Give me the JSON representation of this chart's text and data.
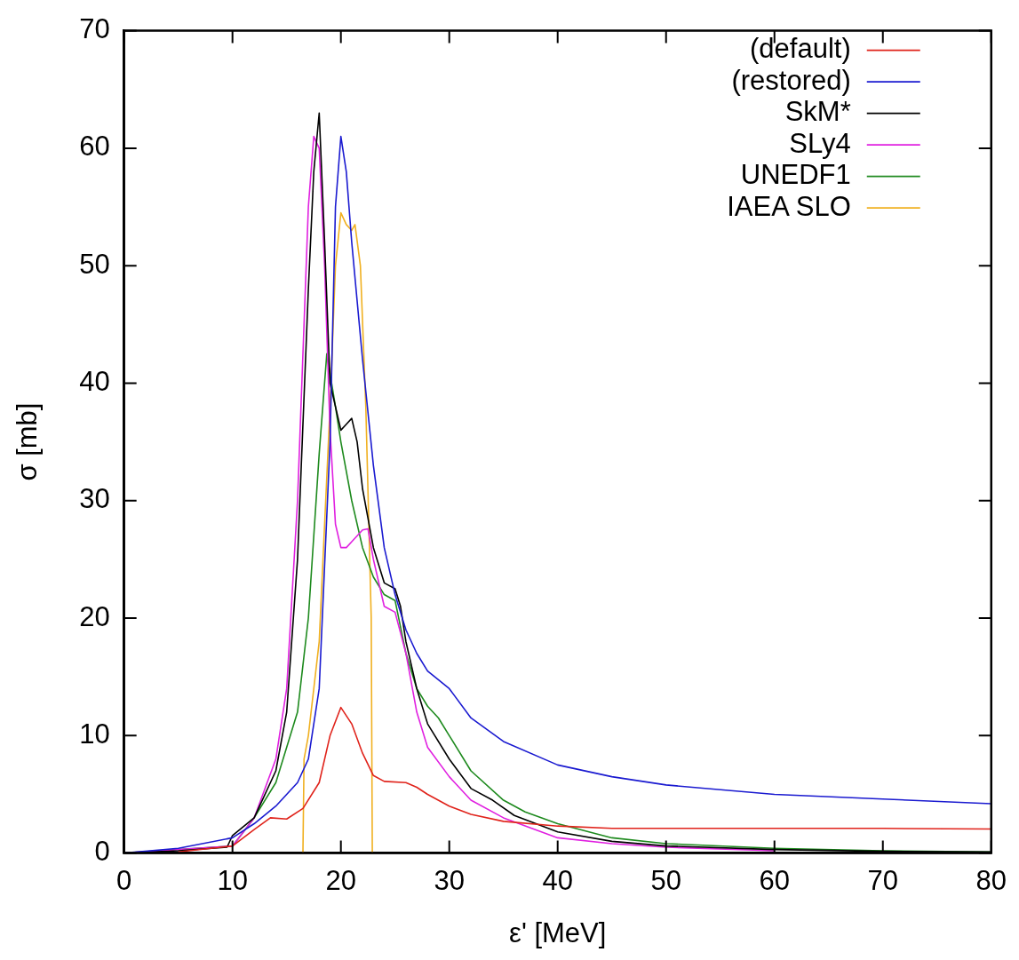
{
  "chart_data": {
    "type": "line",
    "xlabel": "ε' [MeV]",
    "ylabel": "σ [mb]",
    "xlim": [
      0,
      80
    ],
    "ylim": [
      0,
      70
    ],
    "xticks": [
      0,
      10,
      20,
      30,
      40,
      50,
      60,
      70,
      80
    ],
    "yticks": [
      0,
      10,
      20,
      30,
      40,
      50,
      60,
      70
    ],
    "grid": false,
    "legend": "top right",
    "marker": "none",
    "line_style": "solid",
    "series": [
      {
        "name": "(default)",
        "color": "#e0231b",
        "x": [
          5,
          10,
          12,
          13.5,
          15,
          16.5,
          18,
          19,
          20,
          21,
          22,
          23,
          24,
          26,
          27,
          28,
          30,
          32,
          35,
          40,
          45,
          50,
          60,
          70,
          80
        ],
        "values": [
          0.1,
          0.6,
          2,
          3,
          2.9,
          3.8,
          6,
          10,
          12.4,
          11,
          8.5,
          6.6,
          6.1,
          6,
          5.6,
          5,
          4,
          3.3,
          2.7,
          2.3,
          2.1,
          2.1,
          2.1,
          2.1,
          2.05
        ]
      },
      {
        "name": "(restored)",
        "color": "#1a1ad0",
        "x": [
          0,
          5,
          10,
          12,
          14,
          16,
          17,
          18,
          19,
          19.5,
          20,
          20.5,
          21,
          22,
          23,
          24,
          25,
          26,
          27,
          28,
          30,
          32,
          35,
          40,
          45,
          50,
          60,
          70,
          80
        ],
        "values": [
          0,
          0.4,
          1.3,
          2.5,
          4,
          6,
          8,
          14,
          35,
          55,
          61,
          58,
          52,
          42,
          33,
          26,
          22,
          19,
          17,
          15.5,
          14,
          11.5,
          9.5,
          7.5,
          6.5,
          5.8,
          5,
          4.6,
          4.2
        ]
      },
      {
        "name": "SkM*",
        "color": "#000000",
        "x": [
          0,
          5,
          9.5,
          10,
          12,
          14,
          15,
          16,
          17,
          17.5,
          18,
          18.5,
          19,
          19.5,
          20,
          20.5,
          21,
          21.5,
          22,
          23,
          24,
          25,
          25.5,
          26,
          27,
          28,
          30,
          32,
          34,
          36,
          40,
          45,
          50,
          60,
          70,
          80
        ],
        "values": [
          0,
          0.2,
          0.5,
          1.5,
          3,
          7,
          12,
          25,
          48,
          58,
          63,
          52,
          40,
          38,
          36,
          36.5,
          37,
          35,
          31,
          26,
          23,
          22.5,
          21,
          18,
          14,
          11,
          8,
          5.5,
          4.5,
          3.2,
          1.8,
          1,
          0.6,
          0.3,
          0.15,
          0.1
        ]
      },
      {
        "name": "SLy4",
        "color": "#e020e0",
        "x": [
          0,
          10,
          12,
          14,
          15,
          16,
          17,
          17.5,
          18,
          18.5,
          19,
          19.5,
          20,
          20.5,
          21,
          22,
          22.5,
          23,
          24,
          25,
          26,
          27,
          28,
          30,
          32,
          35,
          40,
          45,
          50,
          60
        ],
        "values": [
          0,
          0.6,
          3,
          8,
          14,
          30,
          55,
          61,
          60,
          50,
          36,
          28,
          26,
          26,
          26.5,
          27.5,
          27.6,
          25,
          21,
          20.5,
          17,
          12,
          9,
          6.5,
          4.5,
          3,
          1.3,
          0.8,
          0.5,
          0.2
        ]
      },
      {
        "name": "UNEDF1",
        "color": "#1e8a1e",
        "x": [
          0,
          10,
          12,
          14,
          16,
          17,
          18,
          18.7,
          19.5,
          20,
          21,
          22,
          23,
          24,
          25,
          26,
          27,
          28,
          29,
          30,
          32,
          35,
          37,
          40,
          45,
          50,
          60,
          70,
          80
        ],
        "values": [
          0,
          0.6,
          3,
          6,
          12,
          20,
          34,
          42.5,
          38,
          35,
          30,
          26,
          23.5,
          22,
          21.5,
          17,
          14,
          12.5,
          11.5,
          10,
          7,
          4.5,
          3.5,
          2.5,
          1.3,
          0.8,
          0.4,
          0.2,
          0.1
        ]
      },
      {
        "name": "IAEA SLO",
        "color": "#f0b020",
        "x": [
          16.5,
          16.6,
          17,
          18,
          19,
          19.5,
          20,
          20.5,
          21,
          21.3,
          21.8,
          22.3,
          22.8,
          22.9
        ],
        "values": [
          0,
          8,
          10,
          18,
          38,
          50,
          54.5,
          53.5,
          53,
          53.5,
          50,
          38,
          20,
          0
        ]
      }
    ]
  }
}
